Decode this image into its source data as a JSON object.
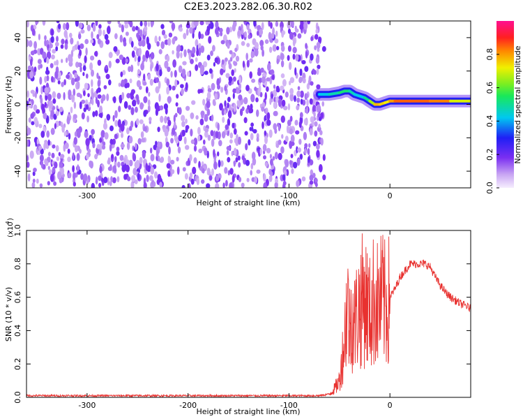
{
  "figure_title": "C2E3.2023.282.06.30.R02",
  "colors": {
    "snr_line": "#e8312f",
    "axis": "#000000",
    "background": "#ffffff"
  },
  "chart_data": [
    {
      "type": "heatmap",
      "title": "C2E3.2023.282.06.30.R02",
      "xlabel": "Height of straight line (km)",
      "ylabel": "Frequency (Hz)",
      "xlim": [
        -360,
        80
      ],
      "ylim": [
        -50,
        50
      ],
      "x_ticks": [
        -300,
        -200,
        -100,
        0
      ],
      "y_ticks": [
        -40,
        -20,
        0,
        20,
        40
      ],
      "colorbar": {
        "label": "Normalized spectral amplitude",
        "range": [
          0,
          1
        ],
        "ticks": [
          0.0,
          0.2,
          0.4,
          0.6,
          0.8
        ],
        "colormap": "rainbow (purple-blue-cyan-green-yellow-red-magenta)"
      },
      "noise_region_x": [
        -360,
        -65
      ],
      "signal_ridge": {
        "x": [
          -70,
          -60,
          -50,
          -45,
          -40,
          -35,
          -30,
          -25,
          -20,
          -15,
          -10,
          -5,
          0,
          5,
          10,
          20,
          40,
          60,
          80
        ],
        "frequency": [
          6,
          6,
          7,
          8,
          8,
          6,
          5,
          4,
          2,
          0,
          0,
          1,
          2,
          2,
          2,
          2,
          2,
          2,
          2
        ],
        "amplitude": [
          0.4,
          0.45,
          0.5,
          0.55,
          0.5,
          0.45,
          0.4,
          0.45,
          0.55,
          0.75,
          0.8,
          0.7,
          0.75,
          0.85,
          0.85,
          0.85,
          0.85,
          0.8,
          0.6
        ]
      }
    },
    {
      "type": "line",
      "title": "",
      "xlabel": "Height of straight line (km)",
      "ylabel": "SNR (10 * v/v)",
      "y_multiplier_label": "(x10",
      "y_multiplier_exp": "4",
      "xlim": [
        -360,
        80
      ],
      "ylim": [
        0,
        1.0
      ],
      "x_ticks": [
        -300,
        -200,
        -100,
        0
      ],
      "y_ticks": [
        0.0,
        0.2,
        0.4,
        0.6,
        0.8,
        1.0
      ],
      "series": [
        {
          "color": "#e8312f",
          "x": [
            -360,
            -300,
            -200,
            -100,
            -70,
            -60,
            -55,
            -50,
            -45,
            -42,
            -40,
            -38,
            -35,
            -30,
            -25,
            -20,
            -15,
            -12,
            -10,
            -8,
            -5,
            -2,
            0,
            5,
            10,
            15,
            20,
            25,
            30,
            35,
            40,
            45,
            50,
            55,
            60,
            65,
            70,
            75,
            80
          ],
          "y": [
            0.01,
            0.01,
            0.01,
            0.01,
            0.01,
            0.02,
            0.05,
            0.1,
            0.35,
            0.6,
            0.4,
            0.5,
            0.45,
            0.55,
            0.6,
            0.5,
            0.6,
            0.55,
            0.55,
            0.6,
            0.55,
            0.55,
            0.6,
            0.65,
            0.72,
            0.76,
            0.8,
            0.8,
            0.8,
            0.8,
            0.78,
            0.72,
            0.67,
            0.63,
            0.6,
            0.58,
            0.56,
            0.55,
            0.53
          ]
        }
      ]
    }
  ]
}
